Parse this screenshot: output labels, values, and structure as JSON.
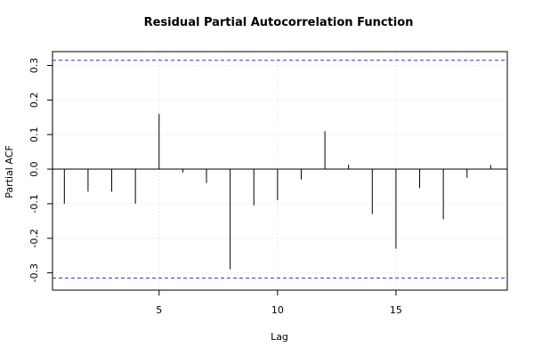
{
  "chart_data": {
    "type": "bar",
    "title": "Residual Partial Autocorrelation Function",
    "xlabel": "Lag",
    "ylabel": "Partial ACF",
    "xlim": [
      0.5,
      19.7
    ],
    "ylim": [
      -0.35,
      0.34
    ],
    "x_ticks": [
      5,
      10,
      15
    ],
    "y_ticks": [
      -0.3,
      -0.2,
      -0.1,
      0.0,
      0.1,
      0.2,
      0.3
    ],
    "y_tick_labels": [
      "-0.3",
      "-0.2",
      "-0.1",
      "0.0",
      "0.1",
      "0.2",
      "0.3"
    ],
    "grid": true,
    "confidence_bound": 0.315,
    "confidence_color": "#3333cc",
    "lags": [
      1,
      2,
      3,
      4,
      5,
      6,
      7,
      8,
      9,
      10,
      11,
      12,
      13,
      14,
      15,
      16,
      17,
      18,
      19
    ],
    "values": [
      -0.1,
      -0.065,
      -0.065,
      -0.1,
      0.16,
      -0.01,
      -0.04,
      -0.29,
      -0.105,
      -0.09,
      -0.03,
      0.11,
      0.013,
      -0.13,
      -0.23,
      -0.055,
      -0.145,
      -0.025,
      0.012
    ]
  }
}
